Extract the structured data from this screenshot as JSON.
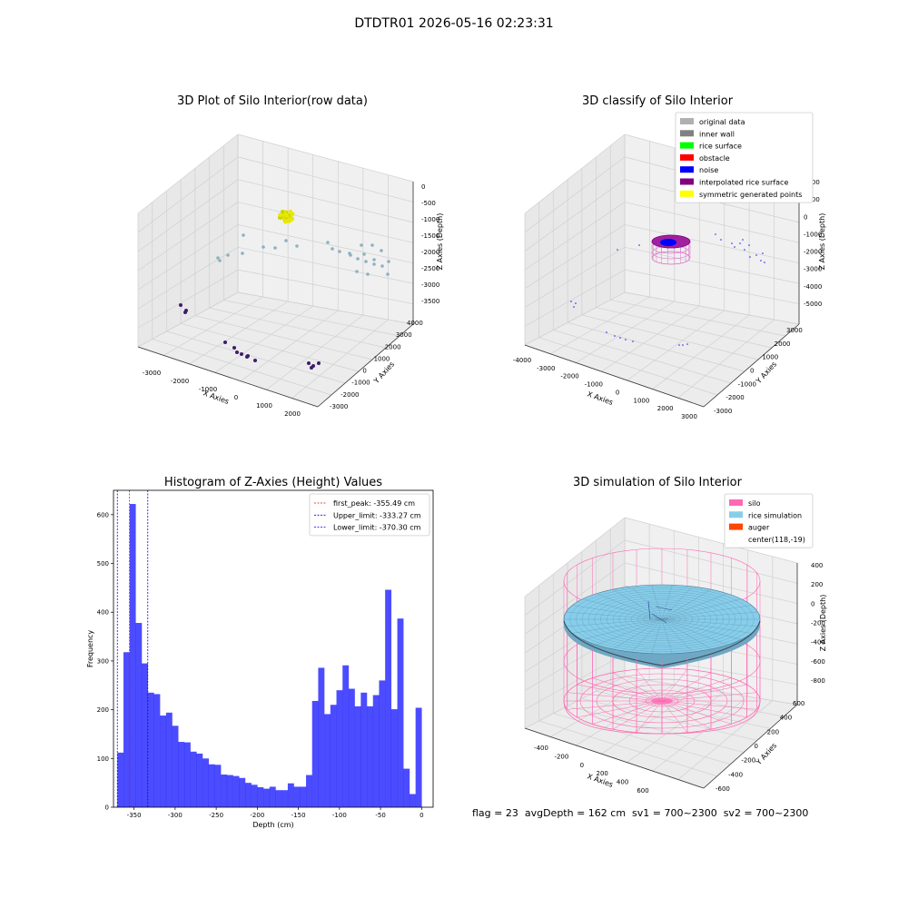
{
  "suptitle": "DTDTR01 2026-05-16 02:23:31",
  "status_text": "flag = 23  avgDepth = 162 cm  sv1 = 700~2300  sv2 = 700~2300",
  "chart_data": [
    {
      "type": "scatter",
      "title": "3D Plot of Silo Interior(row data)",
      "xlabel": "X Axies",
      "ylabel": "Y Axies",
      "zlabel": "Z Axies (Depth)",
      "x_ticks": [
        "-3000",
        "-2000",
        "-1000",
        "0",
        "1000",
        "2000"
      ],
      "y_ticks": [
        "-3000",
        "-2000",
        "-1000",
        "0",
        "1000",
        "2000",
        "3000",
        "4000"
      ],
      "z_ticks": [
        "0",
        "-500",
        "-1000",
        "-1500",
        "-2000",
        "-2500",
        "-3000",
        "-3500"
      ],
      "grid": true
    },
    {
      "type": "scatter",
      "title": "3D classify of Silo Interior",
      "xlabel": "X Axies",
      "ylabel": "Y Axies",
      "zlabel": "Z Axies (Depth)",
      "x_ticks": [
        "-4000",
        "-3000",
        "-2000",
        "-1000",
        "0",
        "1000",
        "2000",
        "3000"
      ],
      "y_ticks": [
        "-3000",
        "-2000",
        "-1000",
        "0",
        "1000",
        "2000",
        "3000"
      ],
      "z_ticks": [
        "2000",
        "1000",
        "0",
        "-1000",
        "-2000",
        "-3000",
        "-4000",
        "-5000"
      ],
      "legend": [
        {
          "label": "original data",
          "color": "#b0b0b0"
        },
        {
          "label": "inner wall",
          "color": "#808080"
        },
        {
          "label": "rice surface",
          "color": "#00ff00"
        },
        {
          "label": "obstacle",
          "color": "#ff0000"
        },
        {
          "label": "noise",
          "color": "#0000ff"
        },
        {
          "label": "interpolated rice surface",
          "color": "#800080"
        },
        {
          "label": "symmetric generated points",
          "color": "#ffff00"
        }
      ],
      "legend_position": "top-right",
      "grid": true
    },
    {
      "type": "bar",
      "title": "Histogram of Z-Axies (Height) Values",
      "xlabel": "Depth (cm)",
      "ylabel": "Frequency",
      "xlim": [
        -375,
        14
      ],
      "ylim": [
        0,
        650
      ],
      "x_ticks": [
        -350,
        -300,
        -250,
        -200,
        -150,
        -100,
        -50,
        0
      ],
      "y_ticks": [
        0,
        100,
        200,
        300,
        400,
        500,
        600
      ],
      "bin_start": -370.3,
      "bin_width": 7.407,
      "values": [
        112,
        318,
        622,
        378,
        295,
        235,
        232,
        188,
        194,
        167,
        134,
        133,
        114,
        110,
        100,
        88,
        87,
        67,
        66,
        64,
        60,
        50,
        46,
        41,
        38,
        42,
        35,
        35,
        49,
        42,
        42,
        66,
        218,
        286,
        191,
        210,
        240,
        291,
        243,
        207,
        235,
        207,
        230,
        260,
        446,
        201,
        387,
        79,
        27,
        204
      ],
      "color": "#0000ff",
      "lines": [
        {
          "label": "first_peak: -355.49 cm",
          "x": -355.49,
          "color": "#ff0000"
        },
        {
          "label": "Upper_limit: -333.27 cm",
          "x": -333.27,
          "color": "#0000ff"
        },
        {
          "label": "Lower_limit: -370.30 cm",
          "x": -370.3,
          "color": "#0000ff"
        }
      ],
      "legend_position": "top-right"
    },
    {
      "type": "surface",
      "title": "3D simulation of Silo Interior",
      "xlabel": "X Axies",
      "ylabel": "Y Axies",
      "zlabel": "Z Axies (Depth)",
      "x_ticks": [
        "-400",
        "-200",
        "0",
        "200",
        "400",
        "600"
      ],
      "y_ticks": [
        "-600",
        "-400",
        "-200",
        "0",
        "200",
        "400",
        "600"
      ],
      "z_ticks": [
        "400",
        "200",
        "0",
        "-200",
        "-400",
        "-600",
        "-800"
      ],
      "legend": [
        {
          "label": "silo",
          "color": "#ff69b4"
        },
        {
          "label": "rice simulation",
          "color": "#87ceeb"
        },
        {
          "label": "auger",
          "color": "#ff4500"
        },
        {
          "label": "center(118,-19)",
          "color": ""
        }
      ],
      "legend_position": "top-right",
      "grid": true
    }
  ]
}
